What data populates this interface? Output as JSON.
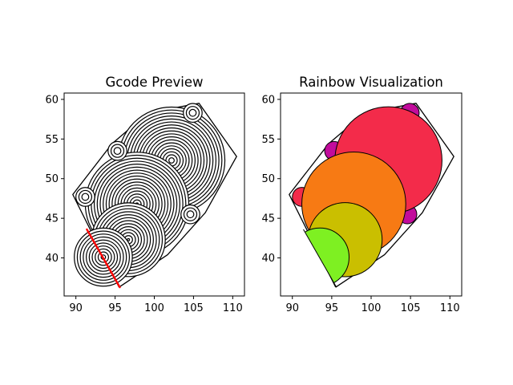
{
  "chart_data": [
    {
      "type": "scatter",
      "title": "Gcode Preview",
      "xlim": [
        88.5,
        111.5
      ],
      "ylim": [
        35.2,
        60.8
      ],
      "xticks": [
        90,
        95,
        100,
        105,
        110
      ],
      "yticks": [
        40,
        45,
        50,
        55,
        60
      ],
      "grid": false,
      "hull": [
        [
          95.5,
          36.3
        ],
        [
          101.7,
          40.4
        ],
        [
          106.5,
          45.7
        ],
        [
          110.5,
          52.8
        ],
        [
          105.7,
          59.5
        ],
        [
          99.2,
          58.3
        ],
        [
          94.6,
          54.4
        ],
        [
          89.6,
          48.0
        ]
      ],
      "circles": [
        {
          "cx": 102.2,
          "cy": 52.3,
          "r": 6.8
        },
        {
          "cx": 97.8,
          "cy": 46.8,
          "r": 6.6
        },
        {
          "cx": 96.7,
          "cy": 42.3,
          "r": 4.7
        },
        {
          "cx": 93.5,
          "cy": 40.1,
          "r": 3.7
        },
        {
          "cx": 91.2,
          "cy": 47.7,
          "r": 1.2
        },
        {
          "cx": 95.3,
          "cy": 53.5,
          "r": 1.2
        },
        {
          "cx": 104.9,
          "cy": 58.3,
          "r": 1.2
        },
        {
          "cx": 104.6,
          "cy": 45.5,
          "r": 1.2
        }
      ],
      "ring_spacing": 0.38,
      "cut_line": [
        [
          91.4,
          43.6
        ],
        [
          95.6,
          36.3
        ]
      ],
      "cut_line_color": "#ff0000"
    },
    {
      "type": "scatter",
      "title": "Rainbow Visualization",
      "xlim": [
        88.5,
        111.5
      ],
      "ylim": [
        35.2,
        60.8
      ],
      "xticks": [
        90,
        95,
        100,
        105,
        110
      ],
      "yticks": [
        40,
        45,
        50,
        55,
        60
      ],
      "grid": false,
      "hull": [
        [
          95.5,
          36.3
        ],
        [
          101.7,
          40.4
        ],
        [
          106.5,
          45.7
        ],
        [
          110.5,
          52.8
        ],
        [
          105.7,
          59.5
        ],
        [
          99.2,
          58.3
        ],
        [
          94.6,
          54.4
        ],
        [
          89.6,
          48.0
        ]
      ],
      "disks": [
        {
          "cx": 91.2,
          "cy": 47.7,
          "r": 1.2,
          "color": "#f32b4a"
        },
        {
          "cx": 95.3,
          "cy": 53.5,
          "r": 1.2,
          "color": "#c20c9c"
        },
        {
          "cx": 104.9,
          "cy": 58.3,
          "r": 1.2,
          "color": "#c20c9c"
        },
        {
          "cx": 104.6,
          "cy": 45.5,
          "r": 1.2,
          "color": "#c20c9c"
        },
        {
          "cx": 102.2,
          "cy": 52.3,
          "r": 6.8,
          "color": "#f32b4a"
        },
        {
          "cx": 97.8,
          "cy": 46.8,
          "r": 6.6,
          "color": "#f77a14"
        },
        {
          "cx": 96.7,
          "cy": 42.3,
          "r": 4.7,
          "color": "#cabf00"
        },
        {
          "cx": 93.5,
          "cy": 40.1,
          "r": 3.7,
          "color": "#7ef022"
        }
      ],
      "clip_line": [
        [
          91.4,
          43.6
        ],
        [
          95.6,
          36.3
        ]
      ]
    }
  ]
}
